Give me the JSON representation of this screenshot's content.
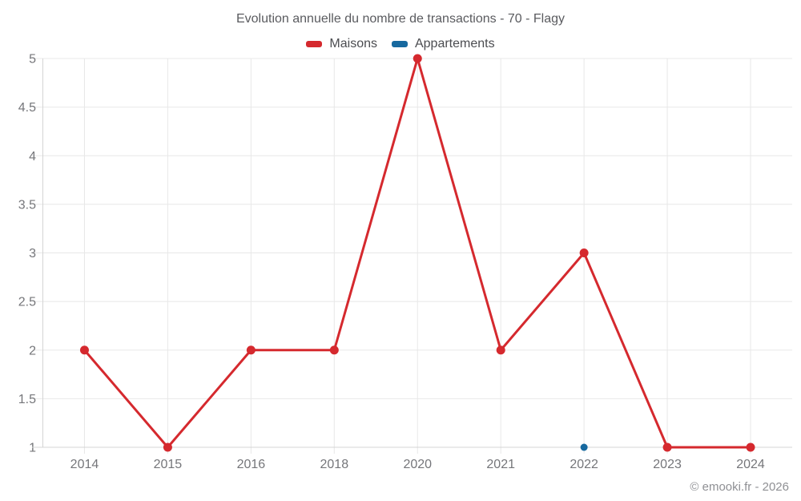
{
  "title": "Evolution annuelle du nombre de transactions - 70 - Flagy",
  "legend": {
    "items": [
      {
        "label": "Maisons",
        "color": "#d5292e"
      },
      {
        "label": "Appartements",
        "color": "#17699f"
      }
    ]
  },
  "footer": {
    "copyright": "© emooki.fr - 2026"
  },
  "chart_data": {
    "type": "line",
    "title": "Evolution annuelle du nombre de transactions - 70 - Flagy",
    "categories": [
      "2014",
      "2015",
      "2016",
      "2018",
      "2020",
      "2021",
      "2022",
      "2023",
      "2024"
    ],
    "series": [
      {
        "name": "Maisons",
        "color": "#d5292e",
        "values": [
          2,
          1,
          2,
          2,
          5,
          2,
          3,
          1,
          1
        ]
      },
      {
        "name": "Appartements",
        "color": "#17699f",
        "values": [
          null,
          null,
          null,
          null,
          null,
          null,
          1,
          null,
          null
        ]
      }
    ],
    "xlabel": "",
    "ylabel": "",
    "ylim": [
      1,
      5
    ],
    "yticks": [
      1,
      1.5,
      2,
      2.5,
      3,
      3.5,
      4,
      4.5,
      5
    ],
    "grid": true,
    "legend_position": "top"
  }
}
